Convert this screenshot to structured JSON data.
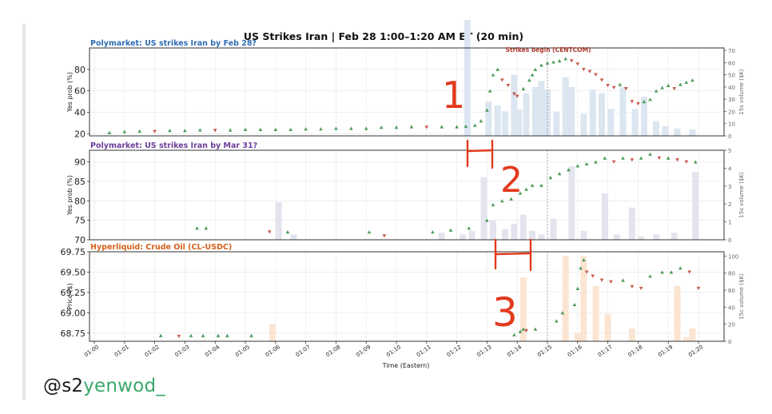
{
  "figure": {
    "title": "US Strikes Iran  |  Feb 28 1:00–1:20 AM ET  (20 min)",
    "xlabel": "Time (Eastern)",
    "x_ticks": [
      "01:00",
      "01:01",
      "01:02",
      "01:03",
      "01:04",
      "01:05",
      "01:06",
      "01:07",
      "01:08",
      "01:09",
      "01:10",
      "01:11",
      "01:12",
      "01:13",
      "01:14",
      "01:15",
      "01:16",
      "01:17",
      "01:18",
      "01:19",
      "01:20"
    ],
    "event_label": "Strikes begin (CENTCOM)",
    "event_x": 15.0,
    "colors": {
      "panel1_title": "#2f6db5",
      "panel2_title": "#6a3d9a",
      "panel3_title": "#d3601a",
      "up": "#2e8b3e",
      "down": "#c0392b",
      "event": "#b03a2e",
      "vol1": "#dbe6f1",
      "vol2": "#e4e4ef",
      "vol3": "#fbe5d2",
      "annot": "#e23a1e"
    }
  },
  "chart_data": [
    {
      "type": "scatter",
      "title": "Polymarket: US strikes Iran by Feb 28?",
      "ylabel": "Yes prob (%)",
      "y2label": "15s volume ($K)",
      "ylim": [
        18,
        100
      ],
      "y_ticks": [
        20,
        40,
        60,
        80
      ],
      "y2lim": [
        0,
        72
      ],
      "y2_ticks": [
        0,
        10,
        20,
        30,
        40,
        50,
        60,
        70
      ],
      "price": [
        [
          0.5,
          21
        ],
        [
          1,
          22
        ],
        [
          1.5,
          22.5
        ],
        [
          2,
          22
        ],
        [
          2.5,
          23
        ],
        [
          3,
          23
        ],
        [
          3.5,
          23.5
        ],
        [
          4,
          23
        ],
        [
          4.5,
          23.5
        ],
        [
          5,
          24
        ],
        [
          5.5,
          24
        ],
        [
          6,
          24
        ],
        [
          6.5,
          24
        ],
        [
          7,
          24.5
        ],
        [
          7.5,
          24.5
        ],
        [
          8,
          25
        ],
        [
          8.5,
          25
        ],
        [
          9,
          25
        ],
        [
          9.5,
          26
        ],
        [
          10,
          26
        ],
        [
          10.5,
          26.5
        ],
        [
          11,
          26
        ],
        [
          11.5,
          26.5
        ],
        [
          12,
          26.5
        ],
        [
          12.3,
          27
        ],
        [
          12.6,
          28
        ],
        [
          12.8,
          32
        ],
        [
          13.0,
          42
        ],
        [
          13.1,
          60
        ],
        [
          13.2,
          75
        ],
        [
          13.35,
          80
        ],
        [
          13.5,
          70
        ],
        [
          13.7,
          65
        ],
        [
          13.9,
          57
        ],
        [
          14.0,
          55
        ],
        [
          14.2,
          62
        ],
        [
          14.4,
          70
        ],
        [
          14.5,
          75
        ],
        [
          14.6,
          80
        ],
        [
          14.8,
          84
        ],
        [
          15.0,
          86
        ],
        [
          15.2,
          87
        ],
        [
          15.4,
          88
        ],
        [
          15.6,
          90
        ],
        [
          15.8,
          88
        ],
        [
          16.0,
          85
        ],
        [
          16.2,
          80
        ],
        [
          16.4,
          78
        ],
        [
          16.6,
          75
        ],
        [
          16.8,
          70
        ],
        [
          17.0,
          65
        ],
        [
          17.2,
          63
        ],
        [
          17.4,
          66
        ],
        [
          17.6,
          62
        ],
        [
          17.8,
          50
        ],
        [
          18.0,
          48
        ],
        [
          18.2,
          50
        ],
        [
          18.4,
          52
        ],
        [
          18.6,
          60
        ],
        [
          18.8,
          63
        ],
        [
          19.0,
          65
        ],
        [
          19.2,
          62
        ],
        [
          19.4,
          66
        ],
        [
          19.6,
          68
        ],
        [
          19.8,
          70
        ]
      ],
      "volume": [
        [
          12.35,
          95
        ],
        [
          13.05,
          28
        ],
        [
          13.35,
          25
        ],
        [
          13.6,
          20
        ],
        [
          13.9,
          50
        ],
        [
          14.05,
          22
        ],
        [
          14.3,
          35
        ],
        [
          14.6,
          40
        ],
        [
          14.8,
          45
        ],
        [
          15.0,
          38
        ],
        [
          15.3,
          20
        ],
        [
          15.6,
          48
        ],
        [
          15.8,
          40
        ],
        [
          16.2,
          18
        ],
        [
          16.5,
          38
        ],
        [
          16.8,
          35
        ],
        [
          17.1,
          22
        ],
        [
          17.5,
          40
        ],
        [
          17.9,
          22
        ],
        [
          18.2,
          32
        ],
        [
          18.6,
          12
        ],
        [
          18.9,
          8
        ],
        [
          19.3,
          6
        ],
        [
          19.8,
          5
        ]
      ]
    },
    {
      "type": "scatter",
      "title": "Polymarket: US strikes Iran by Mar 31?",
      "ylabel": "Yes prob (%)",
      "y2label": "15s volume ($K)",
      "ylim": [
        70,
        93
      ],
      "y_ticks": [
        70,
        75,
        80,
        85,
        90
      ],
      "y2lim": [
        0,
        5
      ],
      "y2_ticks": [
        0,
        1,
        2,
        3,
        4,
        5
      ],
      "price": [
        [
          3.4,
          73
        ],
        [
          3.7,
          73
        ],
        [
          5.8,
          72
        ],
        [
          6.4,
          72
        ],
        [
          9.1,
          72
        ],
        [
          9.6,
          71
        ],
        [
          11.2,
          72
        ],
        [
          11.8,
          72.5
        ],
        [
          12.4,
          73
        ],
        [
          13.0,
          75
        ],
        [
          13.2,
          79
        ],
        [
          13.5,
          80
        ],
        [
          13.8,
          80.5
        ],
        [
          14.1,
          82
        ],
        [
          14.3,
          83
        ],
        [
          14.5,
          84
        ],
        [
          14.8,
          84
        ],
        [
          15.1,
          86
        ],
        [
          15.4,
          87
        ],
        [
          15.7,
          88
        ],
        [
          16.0,
          89
        ],
        [
          16.3,
          89.5
        ],
        [
          16.6,
          90
        ],
        [
          16.9,
          91
        ],
        [
          17.2,
          90
        ],
        [
          17.5,
          91
        ],
        [
          17.8,
          90.5
        ],
        [
          18.1,
          91
        ],
        [
          18.4,
          92
        ],
        [
          18.7,
          91
        ],
        [
          19.0,
          91
        ],
        [
          19.3,
          90.5
        ],
        [
          19.6,
          90
        ],
        [
          19.9,
          90
        ]
      ],
      "volume": [
        [
          6.1,
          2.1
        ],
        [
          6.6,
          0.3
        ],
        [
          11.5,
          0.4
        ],
        [
          12.2,
          0.3
        ],
        [
          12.5,
          0.5
        ],
        [
          12.9,
          3.5
        ],
        [
          13.2,
          1.1
        ],
        [
          13.6,
          0.6
        ],
        [
          13.9,
          0.9
        ],
        [
          14.2,
          1.4
        ],
        [
          14.5,
          0.5
        ],
        [
          14.8,
          0.3
        ],
        [
          15.2,
          1.2
        ],
        [
          15.8,
          4.1
        ],
        [
          16.2,
          0.5
        ],
        [
          16.9,
          2.6
        ],
        [
          17.3,
          0.3
        ],
        [
          17.8,
          1.8
        ],
        [
          18.1,
          0.2
        ],
        [
          18.6,
          0.3
        ],
        [
          19.2,
          0.4
        ],
        [
          19.9,
          3.8
        ]
      ]
    },
    {
      "type": "scatter",
      "title": "Hyperliquid: Crude Oil (CL-USDC)",
      "ylabel": "Price ($)",
      "y2label": "15c volume ($K)",
      "ylim": [
        68.65,
        69.75
      ],
      "y_ticks": [
        68.75,
        69.0,
        69.25,
        69.5,
        69.75
      ],
      "y2lim": [
        0,
        105
      ],
      "y2_ticks": [
        0,
        20,
        40,
        60,
        80,
        100
      ],
      "price": [
        [
          2.2,
          68.72
        ],
        [
          2.8,
          68.71
        ],
        [
          3.2,
          68.72
        ],
        [
          3.6,
          68.72
        ],
        [
          4.1,
          68.72
        ],
        [
          4.4,
          68.72
        ],
        [
          5.2,
          68.72
        ],
        [
          13.9,
          68.73
        ],
        [
          14.1,
          68.77
        ],
        [
          14.2,
          68.8
        ],
        [
          14.3,
          68.78
        ],
        [
          14.6,
          68.8
        ],
        [
          15.3,
          68.9
        ],
        [
          15.5,
          69.0
        ],
        [
          15.9,
          69.1
        ],
        [
          16.0,
          69.3
        ],
        [
          16.1,
          69.55
        ],
        [
          16.2,
          69.65
        ],
        [
          16.3,
          69.5
        ],
        [
          16.5,
          69.45
        ],
        [
          16.8,
          69.4
        ],
        [
          17.1,
          69.38
        ],
        [
          17.5,
          69.4
        ],
        [
          17.8,
          69.32
        ],
        [
          18.1,
          69.3
        ],
        [
          18.4,
          69.45
        ],
        [
          18.8,
          69.5
        ],
        [
          19.1,
          69.5
        ],
        [
          19.4,
          69.55
        ],
        [
          19.7,
          69.5
        ],
        [
          20.0,
          69.3
        ]
      ],
      "volume": [
        [
          5.9,
          20
        ],
        [
          14.2,
          75
        ],
        [
          15.6,
          100
        ],
        [
          16.0,
          10
        ],
        [
          16.2,
          100
        ],
        [
          16.6,
          65
        ],
        [
          17.0,
          32
        ],
        [
          17.8,
          15
        ],
        [
          19.3,
          65
        ],
        [
          19.6,
          5
        ],
        [
          19.8,
          15
        ]
      ]
    }
  ],
  "annotations": {
    "marks": [
      "1",
      "2",
      "3"
    ]
  },
  "watermark": {
    "prefix": "@s2",
    "highlight": "yenwod_"
  }
}
